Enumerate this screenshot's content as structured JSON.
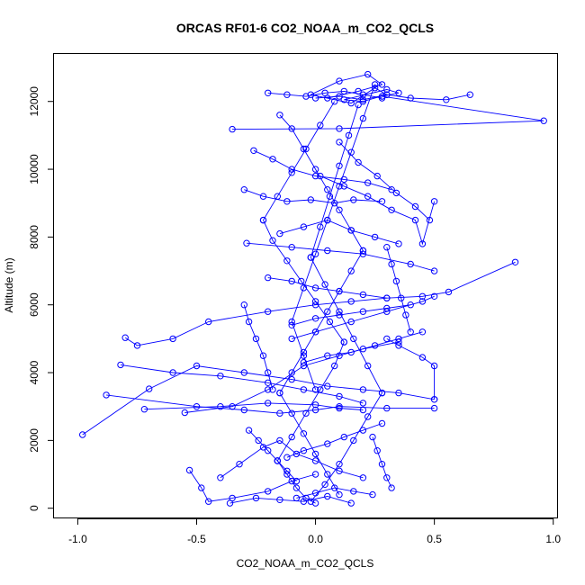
{
  "chart_data": {
    "type": "line",
    "title": "ORCAS RF01-6 CO2_NOAA_m_CO2_QCLS",
    "xlabel": "CO2_NOAA_m_CO2_QCLS",
    "ylabel": "Altitude (m)",
    "xlim": [
      -1.1,
      1.02
    ],
    "ylim": [
      -300,
      13400
    ],
    "x_ticks": [
      -1.0,
      -0.5,
      0.0,
      0.5,
      1.0
    ],
    "x_tick_labels": [
      "-1.0",
      "-0.5",
      "0.0",
      "0.5",
      "1.0"
    ],
    "y_ticks": [
      0,
      2000,
      4000,
      6000,
      8000,
      10000,
      12000
    ],
    "y_tick_labels": [
      "0",
      "2000",
      "4000",
      "6000",
      "8000",
      "10000",
      "12000"
    ],
    "grid": false,
    "legend": "none",
    "series_color": "#0000ff",
    "marker": "open-circle",
    "series": [
      {
        "x": [
          0.05,
          0.18,
          0.28,
          0.22,
          0.1,
          -0.02,
          0.15,
          0.25,
          0.3,
          0.2,
          0.12,
          0.3,
          0.35,
          0.28,
          0.96,
          0.1,
          -0.35
        ],
        "y": [
          12100,
          12300,
          12500,
          12800,
          12600,
          12200,
          11950,
          12400,
          12200,
          12000,
          12050,
          12350,
          12250,
          12150,
          11430,
          11200,
          11180
        ]
      },
      {
        "x": [
          -0.98,
          -0.7,
          -0.5,
          -0.3,
          -0.1,
          0.05,
          0.2,
          0.35,
          0.5
        ],
        "y": [
          2170,
          3520,
          4200,
          4000,
          3800,
          3600,
          3500,
          3400,
          3210
        ]
      },
      {
        "x": [
          -0.8,
          -0.75,
          -0.6,
          -0.45,
          -0.2,
          0.0,
          0.15,
          0.3,
          0.45,
          0.56,
          0.84
        ],
        "y": [
          5030,
          4800,
          5000,
          5500,
          5800,
          6000,
          6100,
          6200,
          6250,
          6380,
          7260
        ]
      },
      {
        "x": [
          -0.88,
          -0.5,
          -0.3,
          -0.15,
          0.0,
          0.1,
          0.3,
          0.5
        ],
        "y": [
          3340,
          3000,
          2900,
          2800,
          2900,
          3000,
          2950,
          2950
        ]
      },
      {
        "x": [
          -0.82,
          -0.6,
          -0.4,
          -0.2,
          -0.05,
          0.1,
          0.2
        ],
        "y": [
          4230,
          4000,
          3900,
          3700,
          3500,
          3300,
          3100
        ]
      },
      {
        "x": [
          -0.72,
          -0.4,
          -0.2,
          0.0,
          0.1,
          0.2
        ],
        "y": [
          2920,
          3000,
          3100,
          3050,
          2950,
          2900
        ]
      },
      {
        "x": [
          -0.29,
          -0.1,
          0.05,
          0.2,
          0.4,
          0.5
        ],
        "y": [
          7820,
          7700,
          7600,
          7500,
          7200,
          7000
        ]
      },
      {
        "x": [
          -0.55,
          -0.35,
          -0.2,
          -0.05,
          0.1,
          0.2,
          0.35
        ],
        "y": [
          2820,
          3000,
          3500,
          4200,
          4500,
          4700,
          4900
        ]
      },
      {
        "x": [
          -0.53,
          -0.48,
          -0.45,
          -0.35,
          -0.2,
          -0.1,
          0.0
        ],
        "y": [
          1120,
          600,
          200,
          300,
          500,
          800,
          1000
        ]
      },
      {
        "x": [
          -0.36,
          -0.25,
          -0.15,
          -0.05,
          0.05,
          0.15
        ],
        "y": [
          150,
          300,
          250,
          200,
          350,
          150
        ]
      },
      {
        "x": [
          -0.4,
          -0.32,
          -0.22,
          -0.15,
          -0.08,
          0.0,
          0.1,
          0.2
        ],
        "y": [
          900,
          1300,
          1800,
          2000,
          1600,
          1400,
          1100,
          900
        ]
      },
      {
        "x": [
          -0.3,
          -0.22,
          -0.12,
          -0.02,
          0.08,
          0.16,
          0.28
        ],
        "y": [
          9400,
          9200,
          9050,
          9100,
          9000,
          9100,
          9050
        ]
      },
      {
        "x": [
          -0.26,
          -0.18,
          -0.1,
          0.0,
          0.12,
          0.22,
          0.32
        ],
        "y": [
          10550,
          10300,
          10000,
          9800,
          9700,
          9600,
          9400
        ]
      },
      {
        "x": [
          -0.15,
          -0.05,
          0.05,
          0.15,
          0.25,
          0.35
        ],
        "y": [
          8100,
          8300,
          8500,
          8200,
          8000,
          7800
        ]
      },
      {
        "x": [
          -0.1,
          0.0,
          0.1,
          0.2,
          0.3,
          0.4
        ],
        "y": [
          5400,
          5600,
          5700,
          5800,
          5900,
          6000
        ]
      },
      {
        "x": [
          -0.05,
          0.05,
          0.15,
          0.25,
          0.35,
          0.45
        ],
        "y": [
          4300,
          4500,
          4600,
          4800,
          5000,
          5200
        ]
      },
      {
        "x": [
          -0.2,
          -0.1,
          0.0,
          0.1,
          0.2,
          0.3
        ],
        "y": [
          6800,
          6700,
          6500,
          6400,
          6300,
          6200
        ]
      },
      {
        "x": [
          -0.12,
          -0.05,
          0.05,
          0.12,
          0.2,
          0.28
        ],
        "y": [
          1500,
          1700,
          1900,
          2100,
          2300,
          2500
        ]
      },
      {
        "x": [
          -0.08,
          0.0,
          0.08,
          0.16,
          0.24
        ],
        "y": [
          300,
          450,
          600,
          500,
          400
        ]
      },
      {
        "x": [
          0.1,
          0.18,
          0.26,
          0.34,
          0.42,
          0.48
        ],
        "y": [
          10800,
          10200,
          9800,
          9300,
          8900,
          8500
        ]
      },
      {
        "x": [
          0.02,
          0.12,
          0.22,
          0.32,
          0.42,
          0.45,
          0.5
        ],
        "y": [
          9800,
          9500,
          9200,
          8800,
          8500,
          7800,
          9050
        ]
      },
      {
        "x": [
          0.5,
          0.45,
          0.3,
          0.15,
          0.0,
          -0.1
        ],
        "y": [
          6250,
          6100,
          5800,
          5500,
          5200,
          5000
        ]
      },
      {
        "x": [
          0.3,
          0.35,
          0.45,
          0.5,
          0.5
        ],
        "y": [
          5000,
          4800,
          4450,
          4200,
          3210
        ]
      },
      {
        "x": [
          -0.15,
          -0.1,
          -0.05,
          0.0,
          0.05,
          0.1,
          0.15,
          0.2
        ],
        "y": [
          11600,
          11200,
          10600,
          10000,
          9400,
          8800,
          8200,
          7600
        ]
      },
      {
        "x": [
          0.2,
          0.15,
          0.1,
          0.05,
          0.0,
          -0.05,
          -0.1,
          -0.15
        ],
        "y": [
          7600,
          7000,
          6400,
          5800,
          5200,
          4600,
          4000,
          3400
        ]
      },
      {
        "x": [
          -0.15,
          -0.1,
          -0.05,
          0.0,
          0.05,
          0.1
        ],
        "y": [
          3400,
          2800,
          2200,
          1600,
          1000,
          400
        ]
      },
      {
        "x": [
          0.08,
          0.02,
          -0.04,
          -0.1,
          -0.16,
          -0.22
        ],
        "y": [
          12000,
          11300,
          10600,
          9900,
          9200,
          8500
        ]
      },
      {
        "x": [
          -0.22,
          -0.18,
          -0.12,
          -0.06,
          0.0,
          0.06,
          0.12
        ],
        "y": [
          8500,
          7900,
          7300,
          6700,
          6100,
          5500,
          4900
        ]
      },
      {
        "x": [
          0.12,
          0.08,
          0.02,
          -0.04,
          -0.1,
          -0.16
        ],
        "y": [
          4900,
          4200,
          3500,
          2800,
          2100,
          1400
        ]
      },
      {
        "x": [
          -0.16,
          -0.12,
          -0.08,
          -0.04,
          0.0
        ],
        "y": [
          1400,
          1000,
          600,
          300,
          150
        ]
      },
      {
        "x": [
          0.18,
          0.14,
          0.1,
          0.06,
          0.02,
          -0.02
        ],
        "y": [
          11900,
          11000,
          10100,
          9200,
          8300,
          7400
        ]
      },
      {
        "x": [
          -0.02,
          0.04,
          0.1,
          0.16,
          0.22,
          0.28
        ],
        "y": [
          7400,
          6600,
          5800,
          5000,
          4200,
          3400
        ]
      },
      {
        "x": [
          0.28,
          0.22,
          0.16,
          0.1,
          0.04,
          -0.02
        ],
        "y": [
          3400,
          2700,
          2000,
          1300,
          700,
          200
        ]
      },
      {
        "x": [
          0.25,
          0.2,
          0.15,
          0.1,
          0.05
        ],
        "y": [
          12500,
          11500,
          10500,
          9500,
          8500
        ]
      },
      {
        "x": [
          0.05,
          0.0,
          -0.05,
          -0.1,
          -0.05,
          0.0
        ],
        "y": [
          8500,
          7500,
          6500,
          5500,
          4500,
          3500
        ]
      },
      {
        "x": [
          -0.3,
          -0.28,
          -0.25,
          -0.22,
          -0.2,
          -0.18
        ],
        "y": [
          6000,
          5500,
          5000,
          4500,
          4000,
          3500
        ]
      },
      {
        "x": [
          -0.28,
          -0.24,
          -0.2,
          -0.16,
          -0.12,
          -0.08
        ],
        "y": [
          2300,
          2000,
          1700,
          1400,
          1100,
          800
        ]
      },
      {
        "x": [
          0.3,
          0.32,
          0.34,
          0.36,
          0.38,
          0.4
        ],
        "y": [
          7700,
          7200,
          6700,
          6200,
          5700,
          5200
        ]
      },
      {
        "x": [
          0.24,
          0.26,
          0.28,
          0.3,
          0.32
        ],
        "y": [
          2100,
          1700,
          1300,
          900,
          600
        ]
      },
      {
        "x": [
          -0.2,
          -0.12,
          -0.04,
          0.04,
          0.12,
          0.2,
          0.28
        ],
        "y": [
          12250,
          12200,
          12150,
          12250,
          12300,
          12200,
          12100
        ]
      },
      {
        "x": [
          0.0,
          0.1,
          0.2,
          0.3,
          0.4,
          0.55,
          0.65
        ],
        "y": [
          12100,
          12150,
          12050,
          12200,
          12100,
          12050,
          12200
        ]
      }
    ]
  }
}
